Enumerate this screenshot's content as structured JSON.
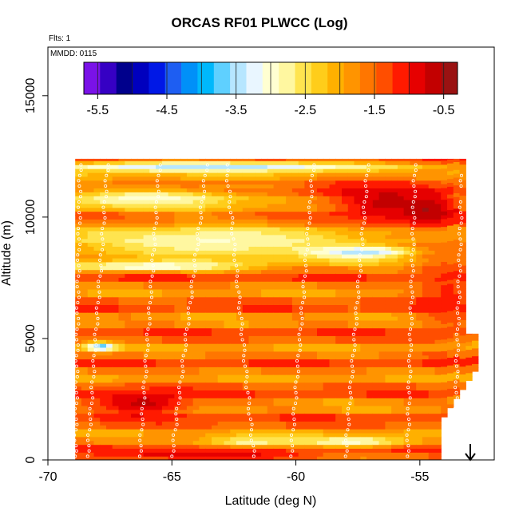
{
  "header": {
    "title": "ORCAS RF01 PLWCC (Log)",
    "flts": "Flts: 1",
    "mmdd": "MMDD: 0115"
  },
  "colors": {
    "colorbar": [
      "#7a12e8",
      "#3600c4",
      "#00008c",
      "#0000be",
      "#0018e6",
      "#1e5ef2",
      "#0090f8",
      "#00b8fc",
      "#5fd0ff",
      "#b6e6ff",
      "#e9f6ff",
      "#ffffd2",
      "#fff7a0",
      "#ffe44f",
      "#ffcd1a",
      "#ffb000",
      "#ff9400",
      "#ff7600",
      "#ff4e00",
      "#ff1a00",
      "#e60000",
      "#c20000",
      "#9a1212"
    ],
    "point": "#ffffff",
    "axis": "#000000"
  },
  "chart_data": {
    "type": "heatmap",
    "title": "ORCAS RF01 PLWCC (Log)",
    "xlabel": "Latitude (deg N)",
    "ylabel": "Altitude (m)",
    "xlim": [
      -70,
      -52
    ],
    "ylim": [
      0,
      17000
    ],
    "x_ticks": [
      -70,
      -65,
      -60,
      -55
    ],
    "y_ticks": [
      0,
      5000,
      10000,
      15000
    ],
    "colorbar": {
      "ticks": [
        -5.5,
        -4.5,
        -3.5,
        -2.5,
        -1.5,
        -0.5
      ],
      "range": [
        -5.7,
        -0.3
      ]
    },
    "annotations": [
      "Flts: 1",
      "MMDD: 0115"
    ],
    "grid": false,
    "features": [
      {
        "lat": -56.5,
        "alt": 10500,
        "value": -0.7,
        "w": 3.6,
        "h": 1500
      },
      {
        "lat": -54.8,
        "alt": 10200,
        "value": -0.5,
        "w": 1.4,
        "h": 900
      },
      {
        "lat": -66.3,
        "alt": 2300,
        "value": -0.7,
        "w": 3.0,
        "h": 800
      },
      {
        "lat": -64.0,
        "alt": 150,
        "value": -0.8,
        "w": 6.0,
        "h": 300
      },
      {
        "lat": -63.5,
        "alt": 8900,
        "value": -2.9,
        "w": 10.0,
        "h": 1100
      },
      {
        "lat": -57.5,
        "alt": 8500,
        "value": -3.5,
        "w": 3.5,
        "h": 400
      },
      {
        "lat": -66.0,
        "alt": 10700,
        "value": -3.0,
        "w": 6.0,
        "h": 600
      },
      {
        "lat": -68.0,
        "alt": 4600,
        "value": -3.7,
        "w": 0.9,
        "h": 300
      },
      {
        "lat": -66.0,
        "alt": 7900,
        "value": -3.2,
        "w": 5.5,
        "h": 250
      },
      {
        "lat": -62.0,
        "alt": 700,
        "value": -2.8,
        "w": 3.0,
        "h": 350
      },
      {
        "lat": -57.8,
        "alt": 700,
        "value": -3.0,
        "w": 3.5,
        "h": 350
      },
      {
        "lat": -63.5,
        "alt": 12000,
        "value": -3.5,
        "w": 12.0,
        "h": 350
      },
      {
        "lat": -54.0,
        "alt": 6800,
        "value": -1.2,
        "w": 2.0,
        "h": 2500
      }
    ]
  }
}
